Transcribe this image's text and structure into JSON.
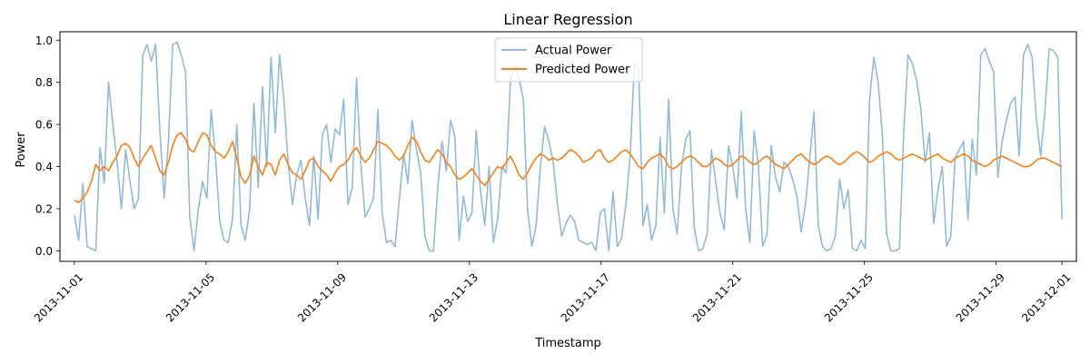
{
  "chart_data": {
    "type": "line",
    "title": "Linear Regression",
    "xlabel": "Timestamp",
    "ylabel": "Power",
    "x_start": "2013-11-01",
    "x_end": "2013-12-01",
    "xlim": [
      "2013-10-31T13:30",
      "2013-12-01T10:30"
    ],
    "ylim": [
      -0.05,
      1.04
    ],
    "xticks": [
      "2013-11-01",
      "2013-11-05",
      "2013-11-09",
      "2013-11-13",
      "2013-11-17",
      "2013-11-21",
      "2013-11-25",
      "2013-11-29",
      "2013-12-01"
    ],
    "yticks": [
      "0.0",
      "0.2",
      "0.4",
      "0.6",
      "0.8",
      "1.0"
    ],
    "grid": false,
    "legend_position": "upper center",
    "series": [
      {
        "name": "Actual Power",
        "color": "#1f77b4",
        "alpha": 0.5,
        "values": [
          0.17,
          0.05,
          0.32,
          0.02,
          0.01,
          0.0,
          0.49,
          0.32,
          0.8,
          0.6,
          0.42,
          0.2,
          0.48,
          0.33,
          0.2,
          0.25,
          0.93,
          0.98,
          0.9,
          0.98,
          0.57,
          0.25,
          0.52,
          0.98,
          0.99,
          0.93,
          0.85,
          0.16,
          0.0,
          0.2,
          0.33,
          0.25,
          0.67,
          0.45,
          0.14,
          0.05,
          0.04,
          0.15,
          0.6,
          0.12,
          0.05,
          0.2,
          0.7,
          0.3,
          0.78,
          0.4,
          0.92,
          0.56,
          0.93,
          0.72,
          0.42,
          0.22,
          0.36,
          0.43,
          0.25,
          0.12,
          0.45,
          0.15,
          0.55,
          0.6,
          0.42,
          0.58,
          0.55,
          0.72,
          0.22,
          0.3,
          0.82,
          0.42,
          0.16,
          0.2,
          0.25,
          0.67,
          0.18,
          0.04,
          0.05,
          0.02,
          0.24,
          0.46,
          0.32,
          0.62,
          0.48,
          0.37,
          0.07,
          0.0,
          0.0,
          0.3,
          0.52,
          0.38,
          0.62,
          0.54,
          0.05,
          0.26,
          0.14,
          0.18,
          0.57,
          0.28,
          0.12,
          0.4,
          0.04,
          0.15,
          0.4,
          0.37,
          0.81,
          0.88,
          0.82,
          0.72,
          0.2,
          0.02,
          0.12,
          0.4,
          0.59,
          0.52,
          0.42,
          0.22,
          0.07,
          0.13,
          0.17,
          0.14,
          0.05,
          0.04,
          0.03,
          0.04,
          0.0,
          0.18,
          0.2,
          0.0,
          0.28,
          0.02,
          0.06,
          0.22,
          0.45,
          0.89,
          0.86,
          0.12,
          0.22,
          0.05,
          0.12,
          0.54,
          0.18,
          0.72,
          0.2,
          0.08,
          0.4,
          0.53,
          0.57,
          0.11,
          0.0,
          0.01,
          0.08,
          0.48,
          0.33,
          0.18,
          0.1,
          0.5,
          0.4,
          0.25,
          0.66,
          0.2,
          0.04,
          0.57,
          0.4,
          0.02,
          0.08,
          0.5,
          0.35,
          0.28,
          0.42,
          0.4,
          0.34,
          0.26,
          0.09,
          0.22,
          0.44,
          0.66,
          0.12,
          0.02,
          0.0,
          0.01,
          0.07,
          0.34,
          0.2,
          0.29,
          0.01,
          0.0,
          0.05,
          0.01,
          0.72,
          0.92,
          0.8,
          0.55,
          0.08,
          0.0,
          0.0,
          0.01,
          0.57,
          0.93,
          0.89,
          0.81,
          0.67,
          0.42,
          0.56,
          0.13,
          0.29,
          0.4,
          0.02,
          0.07,
          0.44,
          0.48,
          0.52,
          0.15,
          0.53,
          0.36,
          0.93,
          0.96,
          0.9,
          0.85,
          0.35,
          0.52,
          0.62,
          0.7,
          0.73,
          0.45,
          0.93,
          0.98,
          0.92,
          0.63,
          0.45,
          0.66,
          0.96,
          0.95,
          0.92,
          0.15
        ]
      },
      {
        "name": "Predicted Power",
        "color": "#ff7f0e",
        "alpha": 1.0,
        "values": [
          0.24,
          0.23,
          0.25,
          0.28,
          0.33,
          0.41,
          0.38,
          0.4,
          0.38,
          0.42,
          0.45,
          0.5,
          0.51,
          0.49,
          0.44,
          0.4,
          0.44,
          0.47,
          0.5,
          0.44,
          0.38,
          0.36,
          0.42,
          0.5,
          0.55,
          0.56,
          0.53,
          0.48,
          0.47,
          0.52,
          0.56,
          0.55,
          0.5,
          0.47,
          0.46,
          0.44,
          0.47,
          0.52,
          0.44,
          0.35,
          0.32,
          0.36,
          0.45,
          0.4,
          0.36,
          0.42,
          0.41,
          0.36,
          0.43,
          0.46,
          0.41,
          0.37,
          0.36,
          0.34,
          0.38,
          0.43,
          0.44,
          0.4,
          0.38,
          0.36,
          0.33,
          0.37,
          0.4,
          0.41,
          0.43,
          0.47,
          0.49,
          0.45,
          0.42,
          0.44,
          0.48,
          0.52,
          0.51,
          0.5,
          0.48,
          0.45,
          0.43,
          0.45,
          0.5,
          0.54,
          0.52,
          0.47,
          0.43,
          0.42,
          0.45,
          0.48,
          0.46,
          0.42,
          0.4,
          0.36,
          0.34,
          0.35,
          0.37,
          0.39,
          0.36,
          0.33,
          0.31,
          0.34,
          0.37,
          0.4,
          0.39,
          0.42,
          0.45,
          0.41,
          0.36,
          0.34,
          0.37,
          0.41,
          0.44,
          0.46,
          0.45,
          0.43,
          0.44,
          0.43,
          0.44,
          0.46,
          0.48,
          0.47,
          0.45,
          0.42,
          0.43,
          0.44,
          0.47,
          0.48,
          0.44,
          0.42,
          0.43,
          0.45,
          0.47,
          0.48,
          0.46,
          0.43,
          0.4,
          0.39,
          0.42,
          0.44,
          0.45,
          0.46,
          0.44,
          0.4,
          0.39,
          0.4,
          0.42,
          0.44,
          0.45,
          0.44,
          0.42,
          0.4,
          0.4,
          0.42,
          0.44,
          0.43,
          0.41,
          0.4,
          0.41,
          0.43,
          0.45,
          0.44,
          0.42,
          0.41,
          0.42,
          0.44,
          0.45,
          0.43,
          0.41,
          0.4,
          0.39,
          0.41,
          0.43,
          0.45,
          0.46,
          0.44,
          0.42,
          0.41,
          0.42,
          0.44,
          0.45,
          0.44,
          0.42,
          0.41,
          0.42,
          0.44,
          0.46,
          0.47,
          0.46,
          0.44,
          0.42,
          0.43,
          0.45,
          0.46,
          0.47,
          0.46,
          0.44,
          0.43,
          0.44,
          0.45,
          0.46,
          0.45,
          0.44,
          0.43,
          0.44,
          0.45,
          0.46,
          0.44,
          0.43,
          0.42,
          0.44,
          0.45,
          0.46,
          0.45,
          0.43,
          0.42,
          0.41,
          0.4,
          0.41,
          0.43,
          0.44,
          0.45,
          0.44,
          0.43,
          0.42,
          0.41,
          0.4,
          0.4,
          0.41,
          0.43,
          0.44,
          0.44,
          0.43,
          0.42,
          0.41,
          0.4
        ]
      }
    ]
  }
}
